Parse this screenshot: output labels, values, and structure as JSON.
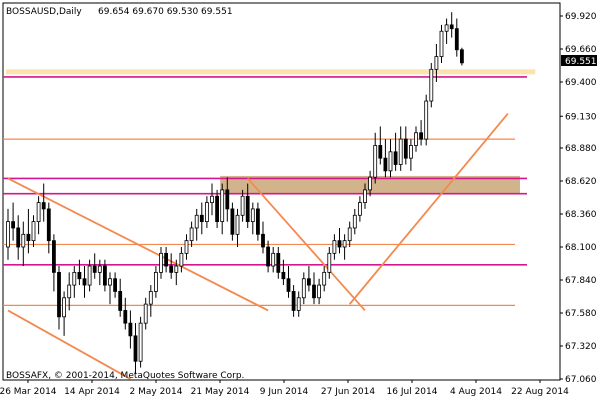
{
  "window": {
    "symbol_label": "BOSSAUSD,Daily",
    "ohlc_label": "69.654 69.670 69.530 69.551",
    "copyright": "BOSSAFX, © 2001-2014, MetaQuotes Software Corp."
  },
  "colors": {
    "background": "#ffffff",
    "candle": "#000000",
    "trendline": "#f4894f",
    "support_line": "#f4894f",
    "magenta_line": "#d4178f",
    "zone_fill": "#d2b48c",
    "current_zone_fill": "#fbe3b0",
    "current_price_box": "#000000"
  },
  "chart_data": {
    "type": "candlestick",
    "title": "BOSSAUSD,Daily",
    "x_labels": [
      "26 Mar 2014",
      "14 Apr 2014",
      "2 May 2014",
      "21 May 2014",
      "9 Jun 2014",
      "27 Jun 2014",
      "16 Jul 2014",
      "4 Aug 2014",
      "22 Aug 2014"
    ],
    "y_ticks": [
      69.92,
      69.66,
      69.4,
      69.13,
      68.88,
      68.62,
      68.36,
      68.1,
      67.84,
      67.58,
      67.32,
      67.06
    ],
    "ylim": [
      67.06,
      69.92
    ],
    "current_price": 69.551,
    "current_price_label": "69.551",
    "grid": false,
    "candles": [
      {
        "o": 68.1,
        "h": 68.4,
        "l": 68.0,
        "c": 68.3
      },
      {
        "o": 68.3,
        "h": 68.45,
        "l": 68.15,
        "c": 68.25
      },
      {
        "o": 68.25,
        "h": 68.35,
        "l": 68.0,
        "c": 68.1
      },
      {
        "o": 68.1,
        "h": 68.3,
        "l": 67.95,
        "c": 68.2
      },
      {
        "o": 68.2,
        "h": 68.4,
        "l": 68.05,
        "c": 68.15
      },
      {
        "o": 68.15,
        "h": 68.35,
        "l": 68.1,
        "c": 68.3
      },
      {
        "o": 68.3,
        "h": 68.5,
        "l": 68.2,
        "c": 68.45
      },
      {
        "o": 68.45,
        "h": 68.6,
        "l": 68.3,
        "c": 68.4
      },
      {
        "o": 68.4,
        "h": 68.45,
        "l": 68.05,
        "c": 68.15
      },
      {
        "o": 68.15,
        "h": 68.2,
        "l": 67.75,
        "c": 67.9
      },
      {
        "o": 67.9,
        "h": 67.95,
        "l": 67.45,
        "c": 67.55
      },
      {
        "o": 67.55,
        "h": 67.75,
        "l": 67.4,
        "c": 67.7
      },
      {
        "o": 67.7,
        "h": 67.9,
        "l": 67.6,
        "c": 67.8
      },
      {
        "o": 67.8,
        "h": 67.95,
        "l": 67.7,
        "c": 67.9
      },
      {
        "o": 67.9,
        "h": 68.0,
        "l": 67.8,
        "c": 67.85
      },
      {
        "o": 67.85,
        "h": 67.95,
        "l": 67.7,
        "c": 67.8
      },
      {
        "o": 67.8,
        "h": 68.0,
        "l": 67.75,
        "c": 67.95
      },
      {
        "o": 67.95,
        "h": 68.05,
        "l": 67.85,
        "c": 67.9
      },
      {
        "o": 67.9,
        "h": 68.0,
        "l": 67.8,
        "c": 67.95
      },
      {
        "o": 67.95,
        "h": 68.0,
        "l": 67.75,
        "c": 67.8
      },
      {
        "o": 67.8,
        "h": 67.9,
        "l": 67.65,
        "c": 67.85
      },
      {
        "o": 67.85,
        "h": 67.9,
        "l": 67.7,
        "c": 67.75
      },
      {
        "o": 67.75,
        "h": 67.85,
        "l": 67.55,
        "c": 67.6
      },
      {
        "o": 67.6,
        "h": 67.7,
        "l": 67.45,
        "c": 67.5
      },
      {
        "o": 67.5,
        "h": 67.6,
        "l": 67.3,
        "c": 67.4
      },
      {
        "o": 67.4,
        "h": 67.5,
        "l": 67.1,
        "c": 67.2
      },
      {
        "o": 67.2,
        "h": 67.55,
        "l": 67.15,
        "c": 67.5
      },
      {
        "o": 67.5,
        "h": 67.7,
        "l": 67.45,
        "c": 67.65
      },
      {
        "o": 67.65,
        "h": 67.8,
        "l": 67.55,
        "c": 67.75
      },
      {
        "o": 67.75,
        "h": 67.95,
        "l": 67.7,
        "c": 67.9
      },
      {
        "o": 67.9,
        "h": 68.1,
        "l": 67.85,
        "c": 68.05
      },
      {
        "o": 68.05,
        "h": 68.1,
        "l": 67.9,
        "c": 67.95
      },
      {
        "o": 67.95,
        "h": 68.05,
        "l": 67.85,
        "c": 67.9
      },
      {
        "o": 67.9,
        "h": 68.0,
        "l": 67.8,
        "c": 67.95
      },
      {
        "o": 67.95,
        "h": 68.1,
        "l": 67.9,
        "c": 68.05
      },
      {
        "o": 68.05,
        "h": 68.2,
        "l": 68.0,
        "c": 68.15
      },
      {
        "o": 68.15,
        "h": 68.3,
        "l": 68.1,
        "c": 68.25
      },
      {
        "o": 68.25,
        "h": 68.4,
        "l": 68.15,
        "c": 68.35
      },
      {
        "o": 68.35,
        "h": 68.45,
        "l": 68.2,
        "c": 68.3
      },
      {
        "o": 68.3,
        "h": 68.5,
        "l": 68.25,
        "c": 68.45
      },
      {
        "o": 68.45,
        "h": 68.6,
        "l": 68.35,
        "c": 68.5
      },
      {
        "o": 68.5,
        "h": 68.55,
        "l": 68.25,
        "c": 68.3
      },
      {
        "o": 68.3,
        "h": 68.6,
        "l": 68.2,
        "c": 68.55
      },
      {
        "o": 68.55,
        "h": 68.65,
        "l": 68.3,
        "c": 68.4
      },
      {
        "o": 68.4,
        "h": 68.45,
        "l": 68.15,
        "c": 68.2
      },
      {
        "o": 68.2,
        "h": 68.4,
        "l": 68.1,
        "c": 68.35
      },
      {
        "o": 68.35,
        "h": 68.55,
        "l": 68.3,
        "c": 68.5
      },
      {
        "o": 68.5,
        "h": 68.6,
        "l": 68.25,
        "c": 68.3
      },
      {
        "o": 68.3,
        "h": 68.45,
        "l": 68.2,
        "c": 68.4
      },
      {
        "o": 68.4,
        "h": 68.45,
        "l": 68.15,
        "c": 68.2
      },
      {
        "o": 68.2,
        "h": 68.3,
        "l": 68.05,
        "c": 68.1
      },
      {
        "o": 68.1,
        "h": 68.15,
        "l": 67.9,
        "c": 67.95
      },
      {
        "o": 67.95,
        "h": 68.1,
        "l": 67.9,
        "c": 68.05
      },
      {
        "o": 68.05,
        "h": 68.1,
        "l": 67.85,
        "c": 67.9
      },
      {
        "o": 67.9,
        "h": 68.0,
        "l": 67.8,
        "c": 67.85
      },
      {
        "o": 67.85,
        "h": 67.95,
        "l": 67.7,
        "c": 67.75
      },
      {
        "o": 67.75,
        "h": 67.8,
        "l": 67.55,
        "c": 67.6
      },
      {
        "o": 67.6,
        "h": 67.75,
        "l": 67.55,
        "c": 67.7
      },
      {
        "o": 67.7,
        "h": 67.9,
        "l": 67.65,
        "c": 67.85
      },
      {
        "o": 67.85,
        "h": 67.95,
        "l": 67.75,
        "c": 67.8
      },
      {
        "o": 67.8,
        "h": 67.9,
        "l": 67.65,
        "c": 67.7
      },
      {
        "o": 67.7,
        "h": 67.85,
        "l": 67.65,
        "c": 67.8
      },
      {
        "o": 67.8,
        "h": 67.95,
        "l": 67.75,
        "c": 67.9
      },
      {
        "o": 67.9,
        "h": 68.1,
        "l": 67.85,
        "c": 68.05
      },
      {
        "o": 68.05,
        "h": 68.2,
        "l": 68.0,
        "c": 68.15
      },
      {
        "o": 68.15,
        "h": 68.25,
        "l": 68.05,
        "c": 68.1
      },
      {
        "o": 68.1,
        "h": 68.2,
        "l": 68.0,
        "c": 68.15
      },
      {
        "o": 68.15,
        "h": 68.3,
        "l": 68.1,
        "c": 68.25
      },
      {
        "o": 68.25,
        "h": 68.4,
        "l": 68.2,
        "c": 68.35
      },
      {
        "o": 68.35,
        "h": 68.5,
        "l": 68.3,
        "c": 68.45
      },
      {
        "o": 68.45,
        "h": 68.6,
        "l": 68.4,
        "c": 68.55
      },
      {
        "o": 68.55,
        "h": 68.7,
        "l": 68.5,
        "c": 68.65
      },
      {
        "o": 68.65,
        "h": 69.0,
        "l": 68.6,
        "c": 68.9
      },
      {
        "o": 68.9,
        "h": 69.05,
        "l": 68.75,
        "c": 68.8
      },
      {
        "o": 68.8,
        "h": 68.95,
        "l": 68.65,
        "c": 68.7
      },
      {
        "o": 68.7,
        "h": 68.95,
        "l": 68.65,
        "c": 68.85
      },
      {
        "o": 68.85,
        "h": 69.0,
        "l": 68.7,
        "c": 68.75
      },
      {
        "o": 68.75,
        "h": 69.05,
        "l": 68.7,
        "c": 68.95
      },
      {
        "o": 68.95,
        "h": 69.05,
        "l": 68.75,
        "c": 68.8
      },
      {
        "o": 68.8,
        "h": 68.95,
        "l": 68.7,
        "c": 68.9
      },
      {
        "o": 68.9,
        "h": 69.05,
        "l": 68.85,
        "c": 69.0
      },
      {
        "o": 69.0,
        "h": 69.1,
        "l": 68.9,
        "c": 68.95
      },
      {
        "o": 68.95,
        "h": 69.3,
        "l": 68.9,
        "c": 69.25
      },
      {
        "o": 69.25,
        "h": 69.55,
        "l": 69.2,
        "c": 69.5
      },
      {
        "o": 69.5,
        "h": 69.7,
        "l": 69.4,
        "c": 69.6
      },
      {
        "o": 69.6,
        "h": 69.85,
        "l": 69.55,
        "c": 69.8
      },
      {
        "o": 69.8,
        "h": 69.9,
        "l": 69.7,
        "c": 69.85
      },
      {
        "o": 69.85,
        "h": 69.95,
        "l": 69.75,
        "c": 69.82
      },
      {
        "o": 69.82,
        "h": 69.9,
        "l": 69.6,
        "c": 69.654
      },
      {
        "o": 69.654,
        "h": 69.67,
        "l": 69.53,
        "c": 69.551
      }
    ],
    "horizontal_levels": [
      {
        "price": 68.95,
        "style": "support_line"
      },
      {
        "price": 68.12,
        "style": "support_line"
      },
      {
        "price": 67.64,
        "style": "support_line"
      },
      {
        "price": 69.44,
        "style": "magenta_line"
      },
      {
        "price": 68.64,
        "style": "magenta_line"
      },
      {
        "price": 68.52,
        "style": "magenta_line"
      },
      {
        "price": 67.96,
        "style": "magenta_line"
      }
    ],
    "zones": [
      {
        "top": 68.66,
        "bottom": 68.52,
        "start_index": 42,
        "end_index": 100,
        "style": "zone_fill"
      },
      {
        "top": 69.5,
        "bottom": 69.46,
        "start_index": 0,
        "end_index": 103,
        "style": "current_zone_fill"
      }
    ],
    "trendlines": [
      {
        "i1": 0,
        "p1": 68.64,
        "i2": 51,
        "p2": 67.6
      },
      {
        "i1": 0,
        "p1": 67.6,
        "i2": 24,
        "p2": 67.06
      },
      {
        "i1": 47,
        "p1": 68.64,
        "i2": 70,
        "p2": 67.6
      },
      {
        "i1": 67,
        "p1": 67.65,
        "i2": 98,
        "p2": 69.15
      }
    ]
  }
}
